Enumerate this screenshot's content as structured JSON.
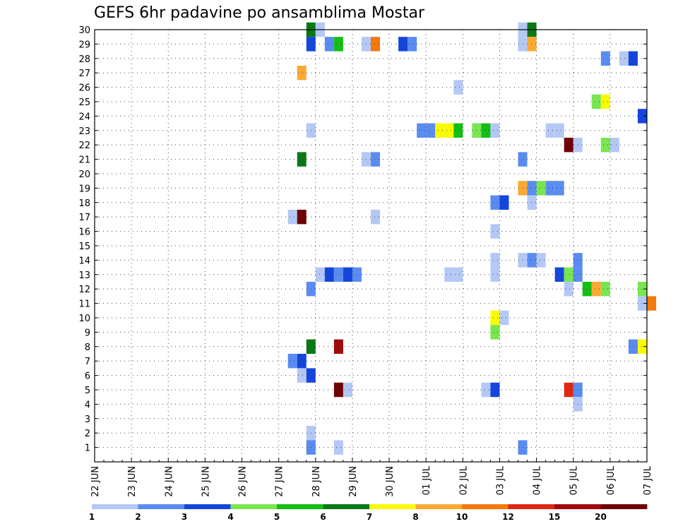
{
  "chart_data": {
    "type": "heatmap",
    "title": "GEFS 6hr padavine po ansamblima Mostar",
    "xlabel": "",
    "ylabel": "",
    "x_tick_labels": [
      "22 JUN",
      "23 JUN",
      "24 JUN",
      "25 JUN",
      "26 JUN",
      "27 JUN",
      "28 JUN",
      "29 JUN",
      "30 JUN",
      "01 JUL",
      "02 JUL",
      "03 JUL",
      "04 JUL",
      "05 JUL",
      "06 JUL",
      "07 JUL"
    ],
    "y_tick_labels": [
      "1",
      "2",
      "3",
      "4",
      "5",
      "6",
      "7",
      "8",
      "9",
      "10",
      "11",
      "12",
      "13",
      "14",
      "15",
      "16",
      "17",
      "18",
      "19",
      "20",
      "21",
      "22",
      "23",
      "24",
      "25",
      "26",
      "27",
      "28",
      "29",
      "30"
    ],
    "x_range_days": [
      0,
      15
    ],
    "y_range": [
      0,
      30
    ],
    "grid": true,
    "colorbar": {
      "labels": [
        "1",
        "2",
        "3",
        "4",
        "5",
        "6",
        "7",
        "8",
        "10",
        "12",
        "15",
        "20"
      ],
      "colors": [
        "#b4c8f5",
        "#5a8cf0",
        "#1446dc",
        "#78e650",
        "#14be14",
        "#0a7814",
        "#fafa00",
        "#faaa32",
        "#f5780a",
        "#dc2814",
        "#a00a0a",
        "#6e0000"
      ]
    },
    "cells": [
      {
        "m": 30,
        "x": 5.75,
        "c": 5
      },
      {
        "m": 30,
        "x": 6.0,
        "c": 0
      },
      {
        "m": 30,
        "x": 11.5,
        "c": 0
      },
      {
        "m": 30,
        "x": 11.75,
        "c": 5
      },
      {
        "m": 29,
        "x": 5.75,
        "c": 2
      },
      {
        "m": 29,
        "x": 6.25,
        "c": 1
      },
      {
        "m": 29,
        "x": 6.5,
        "c": 4
      },
      {
        "m": 29,
        "x": 7.25,
        "c": 0
      },
      {
        "m": 29,
        "x": 7.5,
        "c": 8
      },
      {
        "m": 29,
        "x": 8.25,
        "c": 2
      },
      {
        "m": 29,
        "x": 8.5,
        "c": 1
      },
      {
        "m": 29,
        "x": 11.5,
        "c": 0
      },
      {
        "m": 29,
        "x": 11.75,
        "c": 7
      },
      {
        "m": 28,
        "x": 13.75,
        "c": 1
      },
      {
        "m": 28,
        "x": 14.25,
        "c": 0
      },
      {
        "m": 28,
        "x": 14.5,
        "c": 2
      },
      {
        "m": 27,
        "x": 5.5,
        "c": 7
      },
      {
        "m": 26,
        "x": 9.75,
        "c": 0
      },
      {
        "m": 25,
        "x": 13.5,
        "c": 3
      },
      {
        "m": 25,
        "x": 13.75,
        "c": 6
      },
      {
        "m": 24,
        "x": 14.75,
        "c": 2
      },
      {
        "m": 23,
        "x": 5.75,
        "c": 0
      },
      {
        "m": 23,
        "x": 8.75,
        "c": 1
      },
      {
        "m": 23,
        "x": 9.0,
        "c": 1
      },
      {
        "m": 23,
        "x": 9.25,
        "c": 6
      },
      {
        "m": 23,
        "x": 9.5,
        "c": 6
      },
      {
        "m": 23,
        "x": 9.75,
        "c": 4
      },
      {
        "m": 23,
        "x": 10.25,
        "c": 3
      },
      {
        "m": 23,
        "x": 10.5,
        "c": 4
      },
      {
        "m": 23,
        "x": 10.75,
        "c": 0
      },
      {
        "m": 23,
        "x": 12.25,
        "c": 0
      },
      {
        "m": 23,
        "x": 12.5,
        "c": 0
      },
      {
        "m": 22,
        "x": 12.75,
        "c": 11
      },
      {
        "m": 22,
        "x": 13.0,
        "c": 0
      },
      {
        "m": 22,
        "x": 13.75,
        "c": 3
      },
      {
        "m": 22,
        "x": 14.0,
        "c": 0
      },
      {
        "m": 21,
        "x": 5.5,
        "c": 5
      },
      {
        "m": 21,
        "x": 7.25,
        "c": 0
      },
      {
        "m": 21,
        "x": 7.5,
        "c": 1
      },
      {
        "m": 21,
        "x": 11.5,
        "c": 1
      },
      {
        "m": 19,
        "x": 11.5,
        "c": 7
      },
      {
        "m": 19,
        "x": 11.75,
        "c": 1
      },
      {
        "m": 19,
        "x": 12.0,
        "c": 3
      },
      {
        "m": 19,
        "x": 12.25,
        "c": 1
      },
      {
        "m": 19,
        "x": 12.5,
        "c": 1
      },
      {
        "m": 18,
        "x": 10.75,
        "c": 1
      },
      {
        "m": 18,
        "x": 11.0,
        "c": 2
      },
      {
        "m": 18,
        "x": 11.75,
        "c": 0
      },
      {
        "m": 17,
        "x": 5.25,
        "c": 0
      },
      {
        "m": 17,
        "x": 5.5,
        "c": 11
      },
      {
        "m": 17,
        "x": 7.5,
        "c": 0
      },
      {
        "m": 16,
        "x": 10.75,
        "c": 0
      },
      {
        "m": 14,
        "x": 10.75,
        "c": 0
      },
      {
        "m": 14,
        "x": 11.5,
        "c": 0
      },
      {
        "m": 14,
        "x": 11.75,
        "c": 1
      },
      {
        "m": 14,
        "x": 12.0,
        "c": 0
      },
      {
        "m": 14,
        "x": 13.0,
        "c": 1
      },
      {
        "m": 13,
        "x": 6.0,
        "c": 0
      },
      {
        "m": 13,
        "x": 6.25,
        "c": 2
      },
      {
        "m": 13,
        "x": 6.5,
        "c": 1
      },
      {
        "m": 13,
        "x": 6.75,
        "c": 2
      },
      {
        "m": 13,
        "x": 7.0,
        "c": 1
      },
      {
        "m": 13,
        "x": 9.5,
        "c": 0
      },
      {
        "m": 13,
        "x": 9.75,
        "c": 0
      },
      {
        "m": 13,
        "x": 10.75,
        "c": 0
      },
      {
        "m": 13,
        "x": 12.5,
        "c": 2
      },
      {
        "m": 13,
        "x": 12.75,
        "c": 3
      },
      {
        "m": 13,
        "x": 13.0,
        "c": 1
      },
      {
        "m": 12,
        "x": 5.75,
        "c": 1
      },
      {
        "m": 12,
        "x": 12.75,
        "c": 0
      },
      {
        "m": 12,
        "x": 13.25,
        "c": 4
      },
      {
        "m": 12,
        "x": 13.5,
        "c": 7
      },
      {
        "m": 12,
        "x": 13.75,
        "c": 3
      },
      {
        "m": 12,
        "x": 14.75,
        "c": 3
      },
      {
        "m": 11,
        "x": 14.75,
        "c": 0
      },
      {
        "m": 11,
        "x": 15.0,
        "c": 8
      },
      {
        "m": 10,
        "x": 10.75,
        "c": 6
      },
      {
        "m": 10,
        "x": 11.0,
        "c": 0
      },
      {
        "m": 9,
        "x": 10.75,
        "c": 3
      },
      {
        "m": 8,
        "x": 5.75,
        "c": 5
      },
      {
        "m": 8,
        "x": 6.5,
        "c": 10
      },
      {
        "m": 8,
        "x": 14.5,
        "c": 1
      },
      {
        "m": 8,
        "x": 14.75,
        "c": 6
      },
      {
        "m": 7,
        "x": 5.25,
        "c": 1
      },
      {
        "m": 7,
        "x": 5.5,
        "c": 2
      },
      {
        "m": 6,
        "x": 5.5,
        "c": 0
      },
      {
        "m": 6,
        "x": 5.75,
        "c": 2
      },
      {
        "m": 5,
        "x": 6.5,
        "c": 11
      },
      {
        "m": 5,
        "x": 6.75,
        "c": 0
      },
      {
        "m": 5,
        "x": 10.5,
        "c": 0
      },
      {
        "m": 5,
        "x": 10.75,
        "c": 2
      },
      {
        "m": 5,
        "x": 12.75,
        "c": 9
      },
      {
        "m": 5,
        "x": 13.0,
        "c": 1
      },
      {
        "m": 4,
        "x": 13.0,
        "c": 0
      },
      {
        "m": 2,
        "x": 5.75,
        "c": 0
      },
      {
        "m": 1,
        "x": 5.75,
        "c": 1
      },
      {
        "m": 1,
        "x": 6.5,
        "c": 0
      },
      {
        "m": 1,
        "x": 11.5,
        "c": 1
      }
    ]
  }
}
